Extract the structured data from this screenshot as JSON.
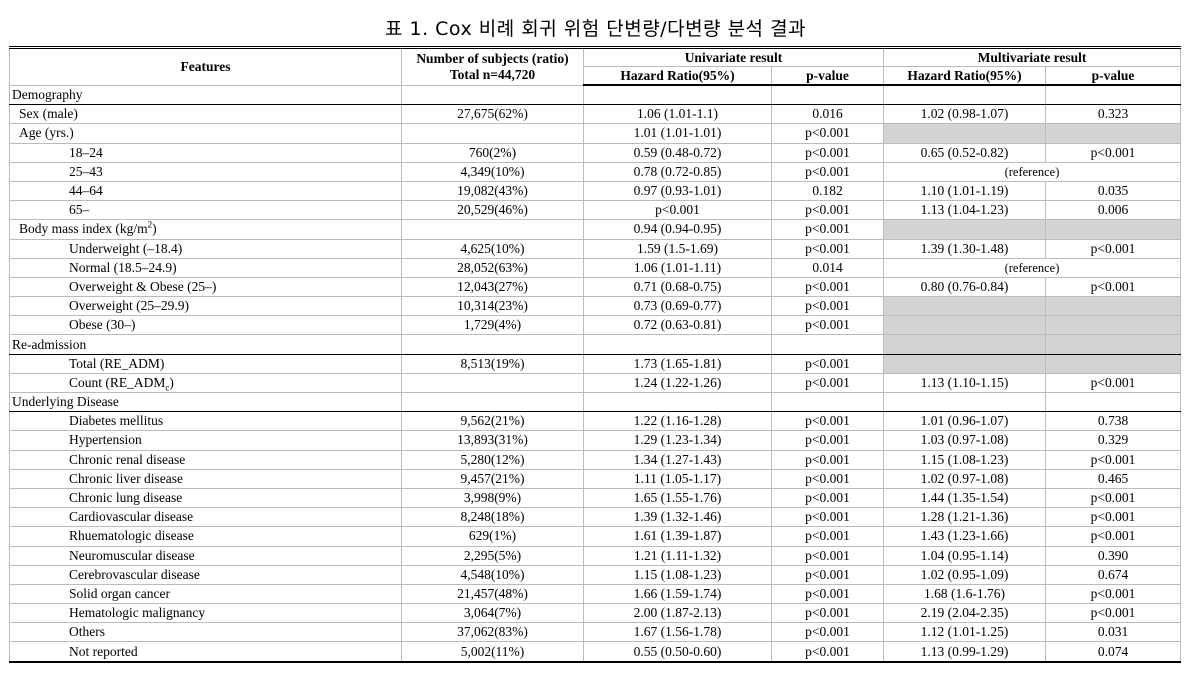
{
  "title": "표 1. Cox 비례 회귀 위험 단변량/다변량 분석 결과",
  "headers": {
    "features": "Features",
    "subjects_line1": "Number of subjects (ratio)",
    "subjects_line2": "Total n=44,720",
    "univariate": "Univariate result",
    "multivariate": "Multivariate result",
    "hr": "Hazard Ratio(95%)",
    "p": "p-value"
  },
  "rows": [
    {
      "type": "section",
      "label": "Demography"
    },
    {
      "level": 1,
      "label": "Sex (male)",
      "n": "27,675(62%)",
      "uhr": "1.06 (1.01-1.1)",
      "up": "0.016",
      "mhr": "1.02 (0.98-1.07)",
      "mp": "0.323"
    },
    {
      "level": 1,
      "label": "Age (yrs.)",
      "n": "",
      "uhr": "1.01 (1.01-1.01)",
      "up": "p<0.001",
      "mshade": true
    },
    {
      "level": 2,
      "label": "18–24",
      "n": "760(2%)",
      "uhr": "0.59 (0.48-0.72)",
      "up": "p<0.001",
      "mhr": "0.65 (0.52-0.82)",
      "mp": "p<0.001"
    },
    {
      "level": 2,
      "label": "25–43",
      "n": "4,349(10%)",
      "uhr": "0.78 (0.72-0.85)",
      "up": "p<0.001",
      "mref": "(reference)"
    },
    {
      "level": 2,
      "label": "44–64",
      "n": "19,082(43%)",
      "uhr": "0.97 (0.93-1.01)",
      "up": "0.182",
      "mhr": "1.10 (1.01-1.19)",
      "mp": "0.035"
    },
    {
      "level": 2,
      "label": "65–",
      "n": "20,529(46%)",
      "uhr": "p<0.001",
      "up": "p<0.001",
      "mhr": "1.13 (1.04-1.23)",
      "mp": "0.006"
    },
    {
      "level": 1,
      "label": "Body mass index (kg/m²)",
      "n": "",
      "uhr": "0.94 (0.94-0.95)",
      "up": "p<0.001",
      "mshade": true
    },
    {
      "level": 2,
      "label": "Underweight (–18.4)",
      "n": "4,625(10%)",
      "uhr": "1.59 (1.5-1.69)",
      "up": "p<0.001",
      "mhr": "1.39 (1.30-1.48)",
      "mp": "p<0.001"
    },
    {
      "level": 2,
      "label": "Normal (18.5–24.9)",
      "n": "28,052(63%)",
      "uhr": "1.06 (1.01-1.11)",
      "up": "0.014",
      "mref": "(reference)"
    },
    {
      "level": 2,
      "label": "Overweight & Obese (25–)",
      "n": "12,043(27%)",
      "uhr": "0.71 (0.68-0.75)",
      "up": "p<0.001",
      "mhr": "0.80 (0.76-0.84)",
      "mp": "p<0.001"
    },
    {
      "level": 2,
      "label": "Overweight (25–29.9)",
      "n": "10,314(23%)",
      "uhr": "0.73 (0.69-0.77)",
      "up": "p<0.001",
      "mshade": true
    },
    {
      "level": 2,
      "label": "Obese (30–)",
      "n": "1,729(4%)",
      "uhr": "0.72 (0.63-0.81)",
      "up": "p<0.001",
      "mshade": true
    },
    {
      "type": "section",
      "label": "Re-admission",
      "mshade": true
    },
    {
      "level": 2,
      "label": "Total (RE_ADM)",
      "n": "8,513(19%)",
      "uhr": "1.73 (1.65-1.81)",
      "up": "p<0.001",
      "mshade": true
    },
    {
      "level": 2,
      "label": "Count (RE_ADMc)",
      "n": "",
      "uhr": "1.24 (1.22-1.26)",
      "up": "p<0.001",
      "mhr": "1.13 (1.10-1.15)",
      "mp": "p<0.001"
    },
    {
      "type": "section",
      "label": "Underlying Disease"
    },
    {
      "level": 2,
      "label": "Diabetes mellitus",
      "n": "9,562(21%)",
      "uhr": "1.22 (1.16-1.28)",
      "up": "p<0.001",
      "mhr": "1.01 (0.96-1.07)",
      "mp": "0.738"
    },
    {
      "level": 2,
      "label": "Hypertension",
      "n": "13,893(31%)",
      "uhr": "1.29 (1.23-1.34)",
      "up": "p<0.001",
      "mhr": "1.03 (0.97-1.08)",
      "mp": "0.329"
    },
    {
      "level": 2,
      "label": "Chronic renal disease",
      "n": "5,280(12%)",
      "uhr": "1.34 (1.27-1.43)",
      "up": "p<0.001",
      "mhr": "1.15 (1.08-1.23)",
      "mp": "p<0.001"
    },
    {
      "level": 2,
      "label": "Chronic liver disease",
      "n": "9,457(21%)",
      "uhr": "1.11 (1.05-1.17)",
      "up": "p<0.001",
      "mhr": "1.02 (0.97-1.08)",
      "mp": "0.465"
    },
    {
      "level": 2,
      "label": "Chronic lung disease",
      "n": "3,998(9%)",
      "uhr": "1.65 (1.55-1.76)",
      "up": "p<0.001",
      "mhr": "1.44 (1.35-1.54)",
      "mp": "p<0.001"
    },
    {
      "level": 2,
      "label": "Cardiovascular disease",
      "n": "8,248(18%)",
      "uhr": "1.39 (1.32-1.46)",
      "up": "p<0.001",
      "mhr": "1.28 (1.21-1.36)",
      "mp": "p<0.001"
    },
    {
      "level": 2,
      "label": "Rhuematologic disease",
      "n": "629(1%)",
      "uhr": "1.61 (1.39-1.87)",
      "up": "p<0.001",
      "mhr": "1.43 (1.23-1.66)",
      "mp": "p<0.001"
    },
    {
      "level": 2,
      "label": "Neuromuscular disease",
      "n": "2,295(5%)",
      "uhr": "1.21 (1.11-1.32)",
      "up": "p<0.001",
      "mhr": "1.04 (0.95-1.14)",
      "mp": "0.390"
    },
    {
      "level": 2,
      "label": "Cerebrovascular disease",
      "n": "4,548(10%)",
      "uhr": "1.15 (1.08-1.23)",
      "up": "p<0.001",
      "mhr": "1.02 (0.95-1.09)",
      "mp": "0.674"
    },
    {
      "level": 2,
      "label": "Solid organ cancer",
      "n": "21,457(48%)",
      "uhr": "1.66 (1.59-1.74)",
      "up": "p<0.001",
      "mhr": "1.68 (1.6-1.76)",
      "mp": "p<0.001"
    },
    {
      "level": 2,
      "label": "Hematologic malignancy",
      "n": "3,064(7%)",
      "uhr": "2.00 (1.87-2.13)",
      "up": "p<0.001",
      "mhr": "2.19 (2.04-2.35)",
      "mp": "p<0.001"
    },
    {
      "level": 2,
      "label": "Others",
      "n": "37,062(83%)",
      "uhr": "1.67 (1.56-1.78)",
      "up": "p<0.001",
      "mhr": "1.12 (1.01-1.25)",
      "mp": "0.031"
    },
    {
      "level": 2,
      "label": "Not reported",
      "n": "5,002(11%)",
      "uhr": "0.55 (0.50-0.60)",
      "up": "p<0.001",
      "mhr": "1.13 (0.99-1.29)",
      "mp": "0.074"
    }
  ]
}
